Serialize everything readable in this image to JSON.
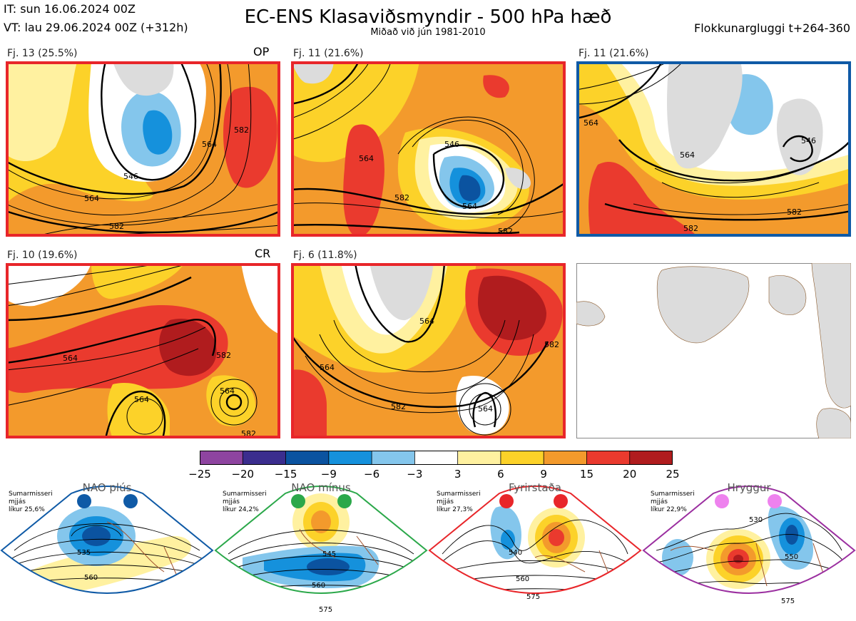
{
  "header": {
    "it_line": "IT: sun 16.06.2024 00Z",
    "vt_line": "VT: lau 29.06.2024 00Z  (+312h)",
    "title": "EC-ENS Klasaviðsmyndir - 500 hPa hæð",
    "subtitle": "Miðað við jún 1981-2010",
    "window": "Flokkunargluggi t+264-360"
  },
  "panels": [
    {
      "label": "Fj. 13 (25.5%)",
      "corner": "OP",
      "border": "#e8262a",
      "contours": [
        "546",
        "564",
        "582",
        "582",
        "564"
      ]
    },
    {
      "label": "Fj. 11 (21.6%)",
      "corner": "",
      "border": "#e8262a",
      "contours": [
        "546",
        "564",
        "582",
        "564",
        "582"
      ]
    },
    {
      "label": "Fj. 11 (21.6%)",
      "corner": "",
      "border": "#0f5aa6",
      "contours": [
        "564",
        "546",
        "564",
        "582",
        "582"
      ]
    },
    {
      "label": "Fj. 10 (19.6%)",
      "corner": "CR",
      "border": "#e8262a",
      "contours": [
        "564",
        "564",
        "582",
        "582",
        "564"
      ]
    },
    {
      "label": "Fj. 6 (11.8%)",
      "corner": "",
      "border": "#e8262a",
      "contours": [
        "564",
        "564",
        "582",
        "564",
        "582"
      ]
    }
  ],
  "colorbar": {
    "ticks": [
      "−25",
      "−20",
      "−15",
      "−9",
      "−6",
      "−3",
      "3",
      "6",
      "9",
      "15",
      "20",
      "25"
    ],
    "colors": [
      "#8e44a0",
      "#3b2d8e",
      "#0b53a0",
      "#1591dc",
      "#84c6ec",
      "#ffffff",
      "#fff1a0",
      "#fcd229",
      "#f39a2c",
      "#ea3a2e",
      "#b01c1e"
    ]
  },
  "regimes": [
    {
      "name": "NAO plús",
      "note_line1": "Sumarmisseri",
      "note_line2": "mjjás",
      "note_line3": "líkur 25,6%",
      "color": "#0f5aa6",
      "contours": [
        "535",
        "560"
      ]
    },
    {
      "name": "NAO mínus",
      "note_line1": "Sumarmisseri",
      "note_line2": "mjjás",
      "note_line3": "líkur 24,2%",
      "color": "#2ba84a",
      "contours": [
        "545",
        "560",
        "575"
      ]
    },
    {
      "name": "Fyrirstaða",
      "note_line1": "Sumarmisseri",
      "note_line2": "mjjás",
      "note_line3": "líkur 27,3%",
      "color": "#e8262a",
      "contours": [
        "540",
        "560",
        "575"
      ]
    },
    {
      "name": "Hryggur",
      "note_line1": "Sumarmisseri",
      "note_line2": "mjjás",
      "note_line3": "líkur 22,9%",
      "color": "#9b2fa0",
      "contours": [
        "530",
        "550",
        "575"
      ]
    }
  ],
  "chart_data": {
    "type": "heatmap",
    "title": "EC-ENS Klasaviðsmyndir - 500 hPa hæð",
    "legend_ticks": [
      -25,
      -20,
      -15,
      -9,
      -6,
      -3,
      3,
      6,
      9,
      15,
      20,
      25
    ],
    "clusters": [
      {
        "cluster": 13,
        "probability_pct": 25.5,
        "tag": "OP"
      },
      {
        "cluster": 11,
        "probability_pct": 21.6
      },
      {
        "cluster": 11,
        "probability_pct": 21.6
      },
      {
        "cluster": 10,
        "probability_pct": 19.6,
        "tag": "CR"
      },
      {
        "cluster": 6,
        "probability_pct": 11.8
      }
    ],
    "regime_probabilities_pct": [
      {
        "regime": "NAO plús",
        "value": 25.6
      },
      {
        "regime": "NAO mínus",
        "value": 24.2
      },
      {
        "regime": "Fyrirstaða",
        "value": 27.3
      },
      {
        "regime": "Hryggur",
        "value": 22.9
      }
    ]
  }
}
